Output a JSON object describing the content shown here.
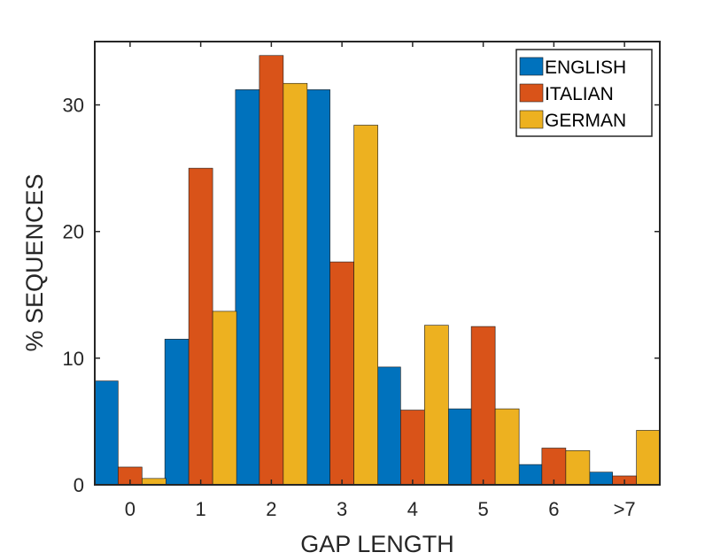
{
  "chart_data": {
    "type": "bar",
    "xlabel": "GAP LENGTH",
    "ylabel": "% SEQUENCES",
    "categories": [
      "0",
      "1",
      "2",
      "3",
      "4",
      "5",
      "6",
      ">7"
    ],
    "ylim": [
      0,
      35
    ],
    "yticks": [
      0,
      10,
      20,
      30
    ],
    "grid": false,
    "legend_position": "top-right",
    "series": [
      {
        "name": "ENGLISH",
        "color": "#0072BD",
        "values": [
          8.2,
          11.5,
          31.2,
          31.2,
          9.3,
          6.0,
          1.6,
          1.0
        ]
      },
      {
        "name": "ITALIAN",
        "color": "#D95319",
        "values": [
          1.4,
          25.0,
          33.9,
          17.6,
          5.9,
          12.5,
          2.9,
          0.7
        ]
      },
      {
        "name": "GERMAN",
        "color": "#EDB120",
        "values": [
          0.5,
          13.7,
          31.7,
          28.4,
          12.6,
          6.0,
          2.7,
          4.3
        ]
      }
    ]
  }
}
